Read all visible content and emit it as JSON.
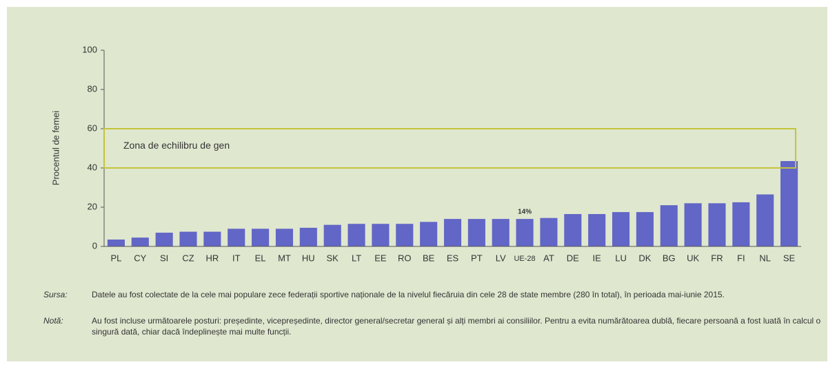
{
  "chart_data": {
    "type": "bar",
    "ylabel": "Procentul de femei",
    "categories": [
      "PL",
      "CY",
      "SI",
      "CZ",
      "HR",
      "IT",
      "EL",
      "MT",
      "HU",
      "SK",
      "LT",
      "EE",
      "RO",
      "BE",
      "ES",
      "PT",
      "LV",
      "UE-28",
      "AT",
      "DE",
      "IE",
      "LU",
      "DK",
      "BG",
      "UK",
      "FR",
      "FI",
      "NL",
      "SE"
    ],
    "values": [
      3.5,
      4.5,
      7,
      7.5,
      7.5,
      9,
      9,
      9,
      9.5,
      11,
      11.5,
      11.5,
      11.5,
      12.5,
      14,
      14,
      14,
      14,
      14.5,
      16.5,
      16.5,
      17.5,
      17.5,
      21,
      22,
      22,
      22.5,
      26.5,
      43.5
    ],
    "value_labels": [
      null,
      null,
      null,
      null,
      null,
      null,
      null,
      null,
      null,
      null,
      null,
      null,
      null,
      null,
      null,
      null,
      null,
      "14%",
      null,
      null,
      null,
      null,
      null,
      null,
      null,
      null,
      null,
      null,
      null
    ],
    "color": "#6266c6",
    "ylim": [
      0,
      100
    ],
    "yticks": [
      0,
      20,
      40,
      60,
      80,
      100
    ],
    "grid": false,
    "zone": {
      "label": "Zona de echilibru de gen",
      "range": [
        40,
        60
      ],
      "color": "#c4c43a"
    },
    "source_label": "Sursa:",
    "source": "Datele au fost colectate de la cele mai populare zece federații sportive naționale de la nivelul fiecăruia din cele 28 de state membre (280 în total), în perioada mai-iunie 2015.",
    "note_label": "Notă:",
    "note": "Au fost incluse următoarele posturi: președinte, vicepreședinte, director general/secretar general și alți membri ai consiliilor. Pentru a evita numărătoarea dublă, fiecare persoană a fost luată în calcul o singură dată, chiar dacă îndeplinește mai multe funcții."
  }
}
